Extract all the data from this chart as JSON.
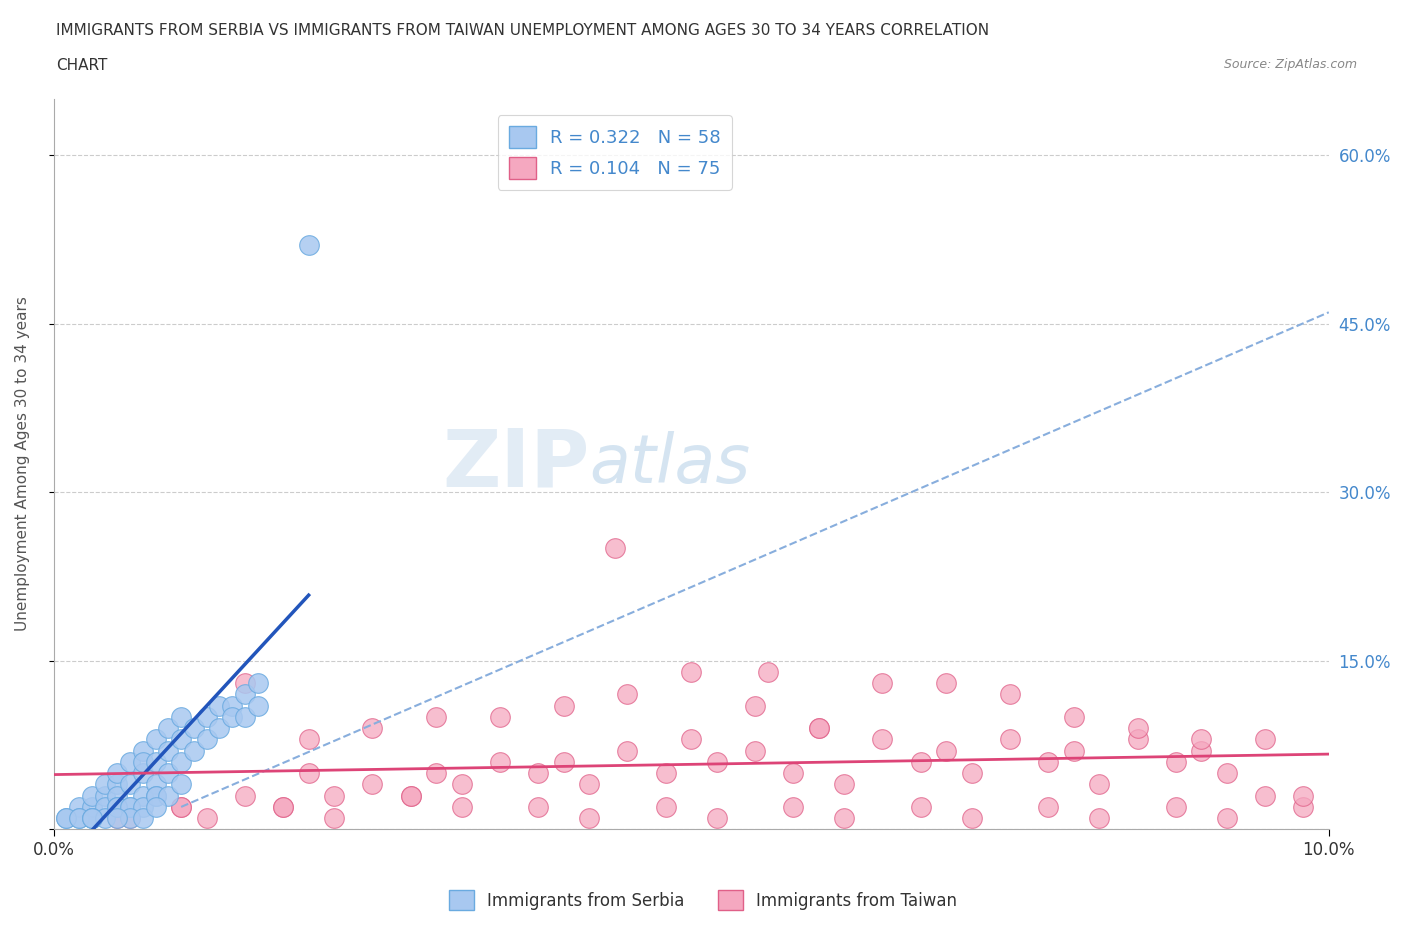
{
  "title_line1": "IMMIGRANTS FROM SERBIA VS IMMIGRANTS FROM TAIWAN UNEMPLOYMENT AMONG AGES 30 TO 34 YEARS CORRELATION",
  "title_line2": "CHART",
  "source": "Source: ZipAtlas.com",
  "serbia_R": 0.322,
  "serbia_N": 58,
  "taiwan_R": 0.104,
  "taiwan_N": 75,
  "xlim": [
    0.0,
    0.1
  ],
  "ylim": [
    0.0,
    0.65
  ],
  "xlabel_ticks": [
    0.0,
    0.1
  ],
  "xlabel_tick_labels": [
    "0.0%",
    "10.0%"
  ],
  "ylabel_ticks": [
    0.0,
    0.15,
    0.3,
    0.45,
    0.6
  ],
  "ylabel_tick_labels": [
    "",
    "15.0%",
    "30.0%",
    "45.0%",
    "60.0%"
  ],
  "serbia_color": "#a8c8f0",
  "serbia_edge": "#6aaae0",
  "taiwan_color": "#f5a8c0",
  "taiwan_edge": "#e06088",
  "serbia_trend_color": "#2255bb",
  "taiwan_trend_color": "#dd4477",
  "serbia_trend_dashed_color": "#88aedd",
  "background_color": "#ffffff",
  "grid_color": "#cccccc",
  "watermark_zip": "ZIP",
  "watermark_atlas": "atlas",
  "legend_serbia_label": "R = 0.322   N = 58",
  "legend_taiwan_label": "R = 0.104   N = 75",
  "serbia_scatter_x": [
    0.001,
    0.002,
    0.002,
    0.003,
    0.003,
    0.003,
    0.004,
    0.004,
    0.004,
    0.005,
    0.005,
    0.005,
    0.005,
    0.006,
    0.006,
    0.006,
    0.007,
    0.007,
    0.007,
    0.007,
    0.008,
    0.008,
    0.008,
    0.008,
    0.009,
    0.009,
    0.009,
    0.01,
    0.01,
    0.01,
    0.011,
    0.011,
    0.012,
    0.012,
    0.013,
    0.013,
    0.014,
    0.014,
    0.015,
    0.015,
    0.016,
    0.016,
    0.001,
    0.002,
    0.003,
    0.004,
    0.005,
    0.006,
    0.007,
    0.008,
    0.009,
    0.01,
    0.006,
    0.007,
    0.008,
    0.02,
    0.003,
    0.005
  ],
  "serbia_scatter_y": [
    0.01,
    0.02,
    0.01,
    0.02,
    0.03,
    0.01,
    0.03,
    0.02,
    0.04,
    0.04,
    0.05,
    0.03,
    0.02,
    0.04,
    0.06,
    0.02,
    0.05,
    0.07,
    0.03,
    0.06,
    0.06,
    0.08,
    0.04,
    0.03,
    0.07,
    0.05,
    0.09,
    0.08,
    0.06,
    0.1,
    0.09,
    0.07,
    0.1,
    0.08,
    0.11,
    0.09,
    0.11,
    0.1,
    0.12,
    0.1,
    0.13,
    0.11,
    0.01,
    0.01,
    0.01,
    0.01,
    0.02,
    0.02,
    0.02,
    0.03,
    0.03,
    0.04,
    0.01,
    0.01,
    0.02,
    0.52,
    0.01,
    0.01
  ],
  "taiwan_scatter_x": [
    0.005,
    0.01,
    0.015,
    0.018,
    0.02,
    0.022,
    0.025,
    0.028,
    0.03,
    0.032,
    0.035,
    0.038,
    0.04,
    0.042,
    0.045,
    0.048,
    0.05,
    0.052,
    0.055,
    0.058,
    0.06,
    0.062,
    0.065,
    0.068,
    0.07,
    0.072,
    0.075,
    0.078,
    0.08,
    0.082,
    0.085,
    0.088,
    0.09,
    0.092,
    0.095,
    0.098,
    0.015,
    0.025,
    0.035,
    0.045,
    0.055,
    0.065,
    0.075,
    0.085,
    0.095,
    0.02,
    0.03,
    0.04,
    0.05,
    0.06,
    0.07,
    0.08,
    0.09,
    0.01,
    0.012,
    0.018,
    0.022,
    0.028,
    0.032,
    0.038,
    0.042,
    0.048,
    0.052,
    0.058,
    0.062,
    0.068,
    0.072,
    0.078,
    0.082,
    0.088,
    0.092,
    0.098,
    0.006,
    0.044,
    0.056
  ],
  "taiwan_scatter_y": [
    0.01,
    0.02,
    0.03,
    0.02,
    0.05,
    0.03,
    0.04,
    0.03,
    0.05,
    0.04,
    0.06,
    0.05,
    0.06,
    0.04,
    0.07,
    0.05,
    0.08,
    0.06,
    0.07,
    0.05,
    0.09,
    0.04,
    0.08,
    0.06,
    0.07,
    0.05,
    0.08,
    0.06,
    0.07,
    0.04,
    0.08,
    0.06,
    0.07,
    0.05,
    0.08,
    0.02,
    0.13,
    0.09,
    0.1,
    0.12,
    0.11,
    0.13,
    0.12,
    0.09,
    0.03,
    0.08,
    0.1,
    0.11,
    0.14,
    0.09,
    0.13,
    0.1,
    0.08,
    0.02,
    0.01,
    0.02,
    0.01,
    0.03,
    0.02,
    0.02,
    0.01,
    0.02,
    0.01,
    0.02,
    0.01,
    0.02,
    0.01,
    0.02,
    0.01,
    0.02,
    0.01,
    0.03,
    0.01,
    0.25,
    0.14
  ]
}
